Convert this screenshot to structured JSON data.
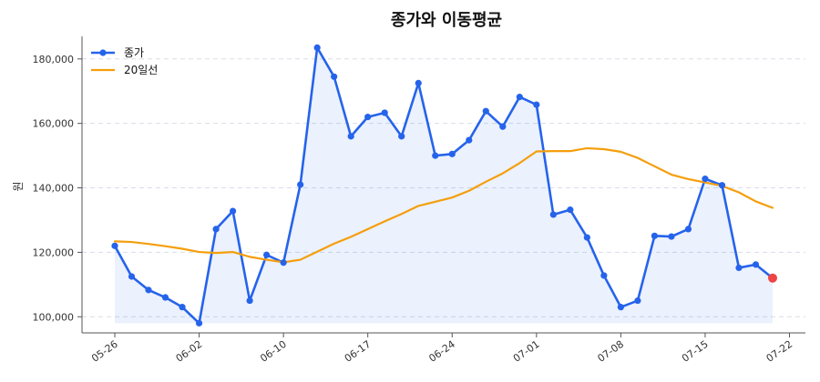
{
  "chart_data": {
    "type": "line",
    "title": "종가와 이동평균",
    "xlabel": "",
    "ylabel": "원",
    "ylim": [
      95000,
      187000
    ],
    "yticks": [
      100000,
      120000,
      140000,
      160000,
      180000
    ],
    "ytick_labels": [
      "100,000",
      "120,000",
      "140,000",
      "160,000",
      "180,000"
    ],
    "xtick_labels": [
      "05-26",
      "06-02",
      "06-10",
      "06-17",
      "06-24",
      "07-01",
      "07-08",
      "07-15",
      "07-22"
    ],
    "xtick_indices": [
      0,
      5,
      10,
      15,
      20,
      25,
      30,
      35,
      40
    ],
    "grid": "y-dashed",
    "legend": "top-left",
    "series": [
      {
        "name": "종가",
        "color": "#2563eb",
        "marker": "circle",
        "fill": true,
        "values": [
          122000,
          112500,
          108300,
          106000,
          103000,
          98000,
          127200,
          132800,
          105000,
          119200,
          116800,
          141000,
          183500,
          174500,
          156000,
          162000,
          163300,
          156000,
          172500,
          150000,
          150500,
          154800,
          163800,
          159000,
          168200,
          165800,
          131700,
          133200,
          124600,
          112800,
          103000,
          105000,
          125100,
          124900,
          127200,
          142800,
          140800,
          115200,
          116200,
          112000
        ]
      },
      {
        "name": "20일선",
        "color": "#f59e0b",
        "marker": "none",
        "values": [
          123400,
          123200,
          122600,
          121900,
          121100,
          120100,
          119800,
          120100,
          118600,
          117700,
          116900,
          117700,
          120200,
          122700,
          124800,
          127200,
          129600,
          131900,
          134400,
          135700,
          137000,
          139100,
          141900,
          144500,
          147700,
          151300,
          151400,
          151400,
          152300,
          152000,
          151200,
          149300,
          146700,
          144100,
          142700,
          141700,
          140600,
          138600,
          135800,
          133800
        ]
      }
    ],
    "last_point_color": "#ef4444"
  }
}
